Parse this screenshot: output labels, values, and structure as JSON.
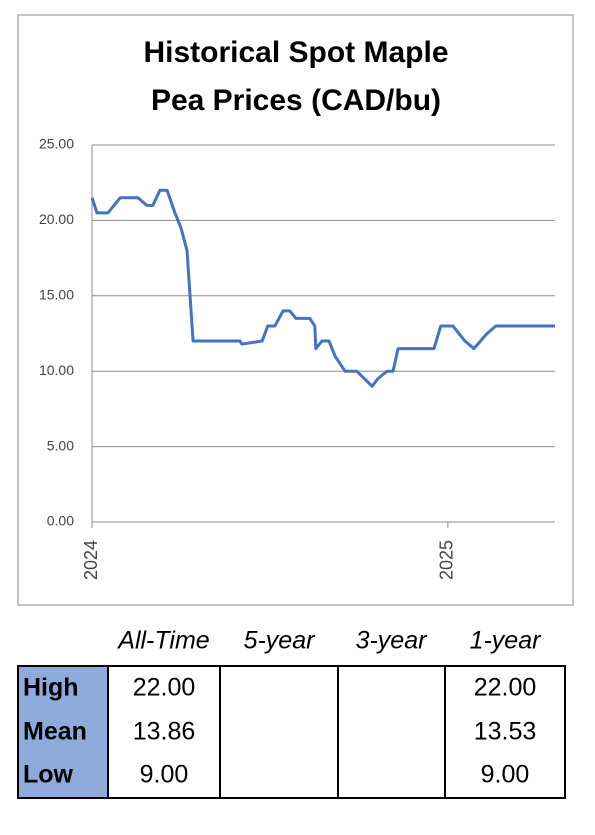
{
  "chart_data": {
    "type": "line",
    "title": "Historical Spot Maple Pea Prices (CAD/bu)",
    "x": [
      2024.0,
      2024.014,
      2024.045,
      2024.079,
      2024.129,
      2024.154,
      2024.171,
      2024.191,
      2024.211,
      2024.233,
      2024.25,
      2024.267,
      2024.284,
      2024.416,
      2024.421,
      2024.478,
      2024.494,
      2024.514,
      2024.537,
      2024.556,
      2024.573,
      2024.612,
      2024.626,
      2024.629,
      2024.646,
      2024.666,
      2024.683,
      2024.711,
      2024.744,
      2024.787,
      2024.803,
      2024.829,
      2024.846,
      2024.86,
      2024.961,
      2024.98,
      2025.014,
      2025.048,
      2025.073,
      2025.11,
      2025.135,
      2025.301
    ],
    "values": [
      21.5,
      20.5,
      20.5,
      21.5,
      21.5,
      21,
      21,
      22,
      22,
      20.5,
      19.5,
      18,
      12,
      12,
      11.8,
      12,
      13,
      13,
      14,
      14,
      13.5,
      13.5,
      13,
      11.5,
      12,
      12,
      11,
      10,
      10,
      9,
      9.5,
      10,
      10,
      11.5,
      11.5,
      13,
      13,
      12,
      11.5,
      12.5,
      13,
      13
    ],
    "color": "#4472c4",
    "xlim": [
      2024,
      2025.301
    ],
    "xticks": [
      2024,
      2025
    ],
    "ylim": [
      0,
      25
    ],
    "yticks": [
      {
        "value": 0,
        "label": "0.00"
      },
      {
        "value": 5,
        "label": "5.00"
      },
      {
        "value": 10,
        "label": "10.00"
      },
      {
        "value": 15,
        "label": "15.00"
      },
      {
        "value": 20,
        "label": "20.00"
      },
      {
        "value": 25,
        "label": "25.00"
      }
    ],
    "grid": true
  },
  "table": {
    "columns": [
      "All-Time",
      "5-year",
      "3-year",
      "1-year"
    ],
    "rows": [
      {
        "label": "High",
        "values": [
          "22.00",
          null,
          null,
          "22.00"
        ]
      },
      {
        "label": "Mean",
        "values": [
          "13.86",
          null,
          null,
          "13.53"
        ]
      },
      {
        "label": "Low",
        "values": [
          "9.00",
          null,
          null,
          "9.00"
        ]
      }
    ]
  }
}
